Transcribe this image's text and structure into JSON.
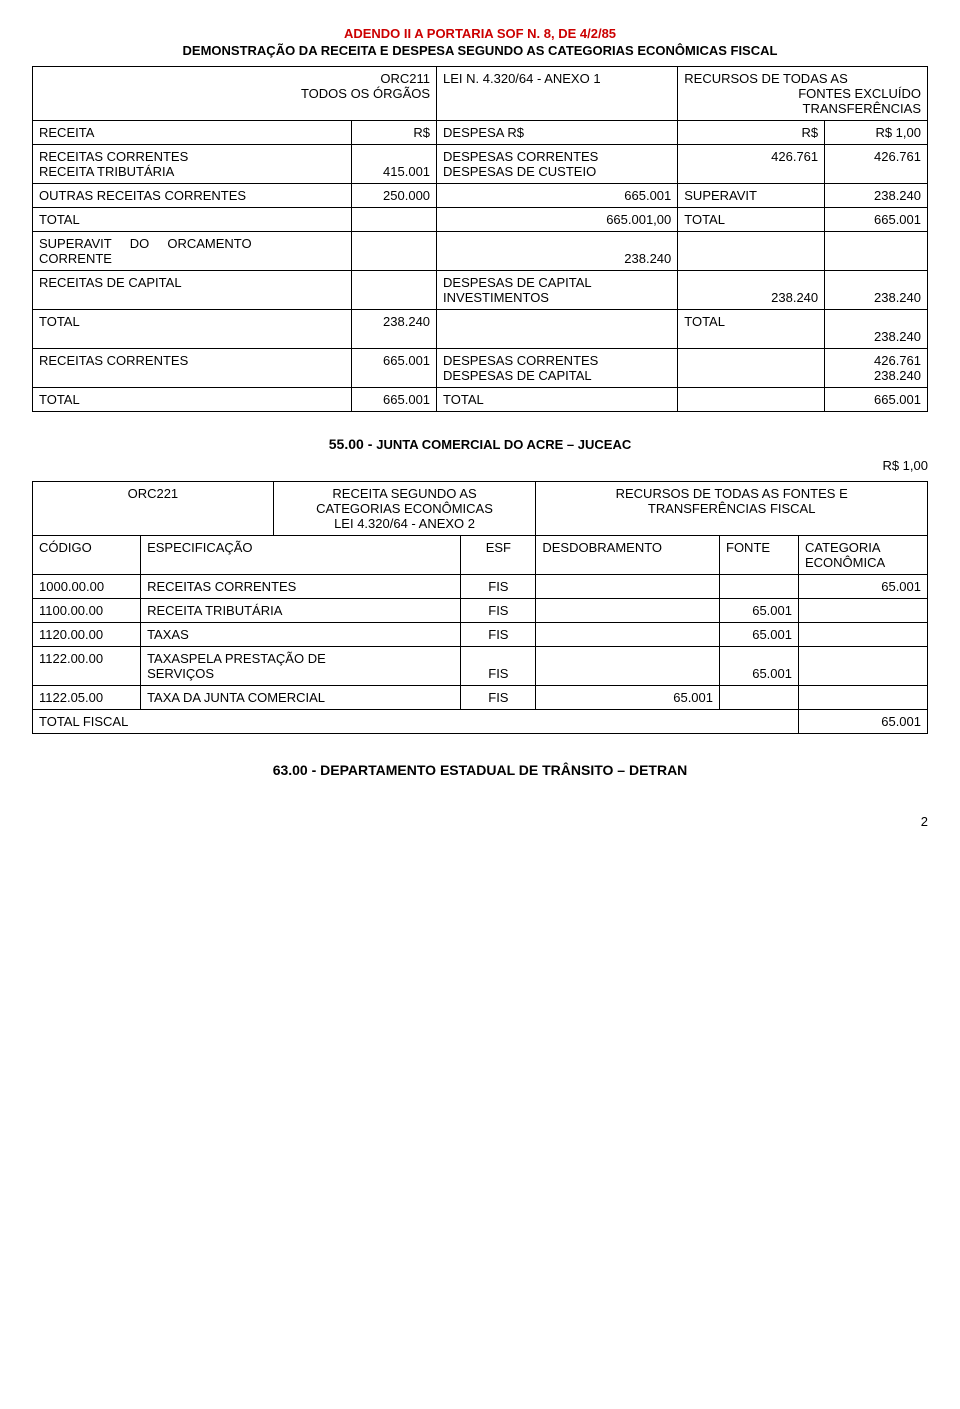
{
  "header": {
    "line1": "ADENDO II A PORTARIA SOF N. 8, DE 4/2/85",
    "line2": "DEMONSTRAÇÃO DA RECEITA E DESPESA SEGUNDO AS CATEGORIAS ECONÔMICAS FISCAL"
  },
  "tableA": {
    "row_header": {
      "c1a": "ORC211",
      "c1b": "TODOS OS ÓRGÃOS",
      "c2": "LEI N. 4.320/64 - ANEXO 1",
      "c3a": "RECURSOS DE TODAS AS",
      "c3b": "FONTES EXCLUÍDO",
      "c3c": "TRANSFERÊNCIAS"
    },
    "row_receita": {
      "c1": "RECEITA",
      "c2": "R$",
      "c3": "DESPESA R$",
      "c4": "R$",
      "c5": "R$ 1,00"
    },
    "row_correntes": {
      "c1a": "RECEITAS CORRENTES",
      "c1b": "RECEITA TRIBUTÁRIA",
      "c2": "415.001",
      "c3a": "DESPESAS CORRENTES",
      "c3b": "DESPESAS DE CUSTEIO",
      "c4": "426.761",
      "c5": "426.761"
    },
    "row_outras": {
      "c1": "OUTRAS RECEITAS CORRENTES",
      "c2": "250.000",
      "c3": "665.001",
      "c4": "SUPERAVIT",
      "c5": "238.240"
    },
    "row_total1": {
      "c1": "TOTAL",
      "c3": "665.001,00",
      "c4": "TOTAL",
      "c5": "665.001"
    },
    "row_superavit": {
      "c1a": "SUPERAVIT",
      "c1b": "DO",
      "c1c": "ORCAMENTO",
      "c1d": "CORRENTE",
      "c3": "238.240"
    },
    "row_capital": {
      "c1": "RECEITAS DE CAPITAL",
      "c3a": "DESPESAS DE CAPITAL",
      "c3b": "INVESTIMENTOS",
      "c4": "238.240",
      "c5": "238.240"
    },
    "row_total2": {
      "c1": "TOTAL",
      "c2": "238.240",
      "c4": "TOTAL",
      "c5": "238.240"
    },
    "row_rec_corr2": {
      "c1": "RECEITAS CORRENTES",
      "c2": "665.001",
      "c3a": "DESPESAS CORRENTES",
      "c3b": "DESPESAS DE CAPITAL",
      "c5a": "426.761",
      "c5b": "238.240"
    },
    "row_total3": {
      "c1": "TOTAL",
      "c2": "665.001",
      "c3": "TOTAL",
      "c5": "665.001"
    }
  },
  "section2": {
    "title_prefix": "55.00 - ",
    "title": "JUNTA COMERCIAL DO ACRE – JUCEAC",
    "unit": "R$ 1,00"
  },
  "tableB": {
    "hdr": {
      "c1": "ORC221",
      "c2a": "RECEITA SEGUNDO AS",
      "c2b": "CATEGORIAS ECONÔMICAS",
      "c2c": "LEI 4.320/64 - ANEXO 2",
      "c3a": "RECURSOS DE TODAS AS FONTES E",
      "c3b": "TRANSFERÊNCIAS FISCAL"
    },
    "hdr2": {
      "c1": "CÓDIGO",
      "c2": "ESPECIFICAÇÃO",
      "c3": "ESF",
      "c4": "DESDOBRAMENTO",
      "c5": "FONTE",
      "c6a": "CATEGORIA",
      "c6b": "ECONÔMICA"
    },
    "rows": [
      {
        "cod": "1000.00.00",
        "esp": "RECEITAS CORRENTES",
        "esf": "FIS",
        "desd": "",
        "fonte": "",
        "cat": "65.001"
      },
      {
        "cod": "1100.00.00",
        "esp": "RECEITA TRIBUTÁRIA",
        "esf": "FIS",
        "desd": "",
        "fonte": "65.001",
        "cat": ""
      },
      {
        "cod": "1120.00.00",
        "esp": "TAXAS",
        "esf": "FIS",
        "desd": "",
        "fonte": "65.001",
        "cat": ""
      },
      {
        "cod": "1122.00.00",
        "esp1": "TAXASPELA PRESTAÇÃO DE",
        "esp2": "SERVIÇOS",
        "esf": "FIS",
        "desd": "",
        "fonte": "65.001",
        "cat": ""
      },
      {
        "cod": "1122.05.00",
        "esp": "TAXA DA JUNTA COMERCIAL",
        "esf": "FIS",
        "desd": "65.001",
        "fonte": "",
        "cat": ""
      }
    ],
    "total": {
      "label": "TOTAL FISCAL",
      "value": "65.001"
    }
  },
  "footer": {
    "section": "63.00 - DEPARTAMENTO ESTADUAL DE TRÂNSITO – DETRAN",
    "page": "2"
  }
}
